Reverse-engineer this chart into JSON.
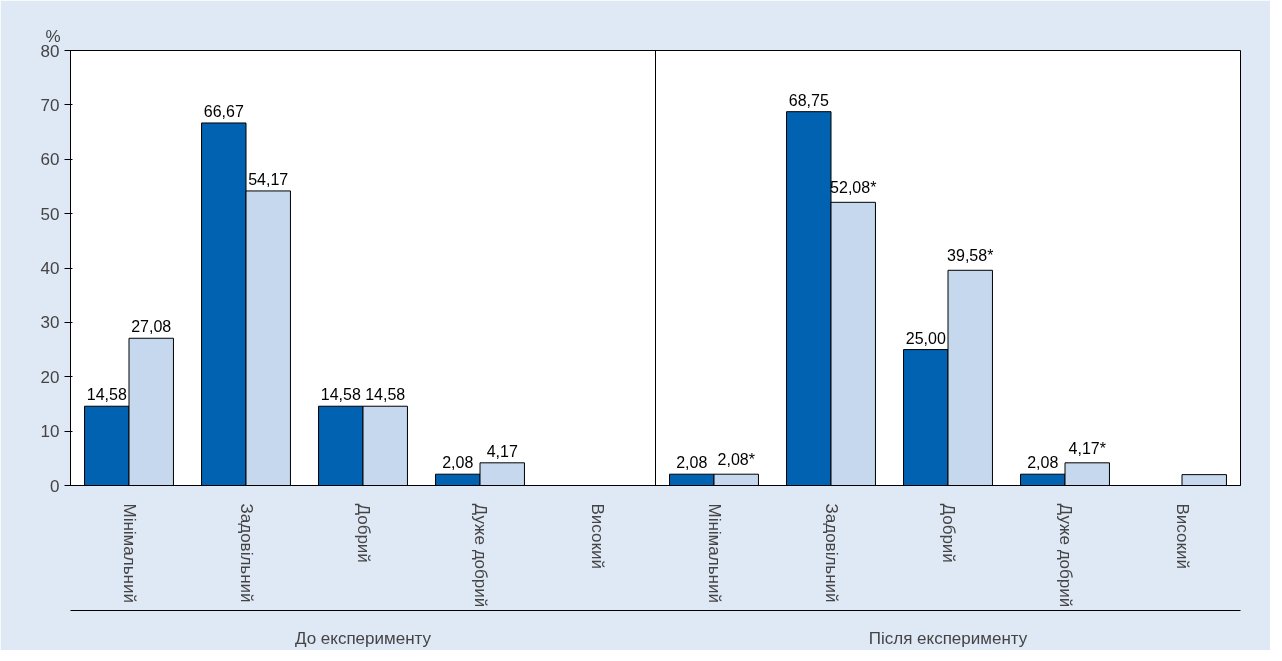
{
  "chart_data": {
    "type": "bar",
    "ylabel": "%",
    "categories": [
      "Мінімальний",
      "Задовільний",
      "Добрий",
      "Дуже добрий",
      "Високий",
      "Мінімальний",
      "Задовільний",
      "Добрий",
      "Дуже добрий",
      "Високий"
    ],
    "series": [
      {
        "color": "#0062b1",
        "values": [
          14.58,
          66.67,
          14.58,
          2.08,
          null,
          2.08,
          68.75,
          25.0,
          2.08,
          null
        ],
        "value_labels": [
          "14,58",
          "66,67",
          "14,58",
          "2,08",
          null,
          "2,08",
          "68,75",
          "25,00",
          "2,08",
          null
        ]
      },
      {
        "color": "#c5d8ee",
        "values": [
          27.08,
          54.17,
          14.58,
          4.17,
          null,
          2.08,
          52.08,
          39.58,
          4.17,
          2
        ],
        "value_labels": [
          "27,08",
          "54,17",
          "14,58",
          "4,17",
          null,
          "2,08*",
          "52,08*",
          "39,58*",
          "4,17*",
          null
        ]
      }
    ],
    "annotations": [
      "До експерименту",
      "Після експерименту"
    ],
    "ylim": [
      0,
      80
    ],
    "yticks": [
      0,
      10,
      20,
      30,
      40,
      50,
      60,
      70,
      80
    ],
    "grid": false
  }
}
